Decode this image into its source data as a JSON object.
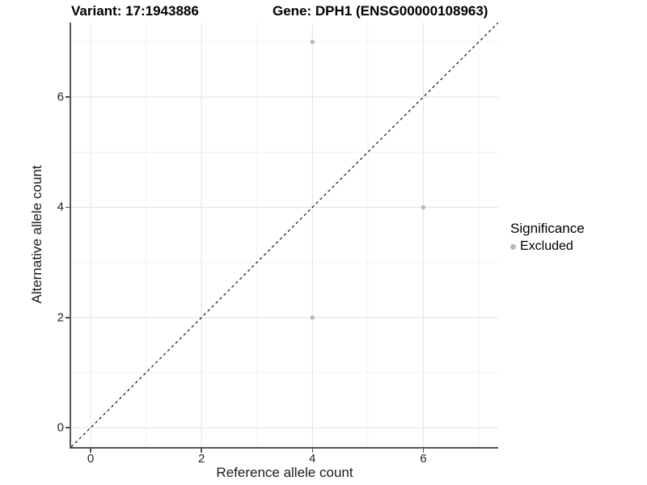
{
  "figure": {
    "title_left": "Variant: 17:1943886",
    "title_right": "Gene: DPH1 (ENSG00000108963)",
    "background": "#ffffff"
  },
  "legend": {
    "title": "Significance",
    "items": [
      {
        "label": "Excluded",
        "color": "#b9b9b9"
      }
    ]
  },
  "chart_data": {
    "type": "scatter",
    "title": "Variant: 17:1943886 / Gene: DPH1 (ENSG00000108963)",
    "xlabel": "Reference allele count",
    "ylabel": "Alternative allele count",
    "xlim": [
      -0.35,
      7.35
    ],
    "ylim": [
      -0.35,
      7.35
    ],
    "x_ticks": [
      0,
      2,
      4,
      6
    ],
    "y_ticks": [
      0,
      2,
      4,
      6
    ],
    "x_minor_gridlines": [
      1,
      3,
      5,
      7
    ],
    "y_minor_gridlines": [
      1,
      3,
      5,
      7
    ],
    "grid": "major+minor",
    "legend_position": "right",
    "series": [
      {
        "name": "Excluded",
        "color": "#b9b9b9",
        "point_radius": 2.7,
        "points": [
          {
            "x": 4,
            "y": 7
          },
          {
            "x": 6,
            "y": 4
          },
          {
            "x": 4,
            "y": 2
          }
        ]
      }
    ],
    "reference_line": {
      "type": "identity y=x",
      "style": "dashed",
      "color": "#000000"
    },
    "style_colors": {
      "grid_major": "#e3e3e3",
      "grid_minor": "#f0f0f0",
      "axis_line": "#555555",
      "tick_text": "#262626"
    }
  }
}
